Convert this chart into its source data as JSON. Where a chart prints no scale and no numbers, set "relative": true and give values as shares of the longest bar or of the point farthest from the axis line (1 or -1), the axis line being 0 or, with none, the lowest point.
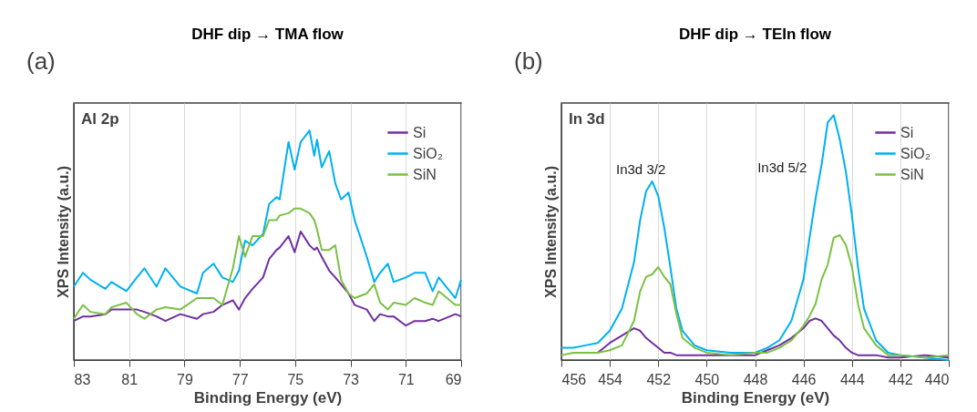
{
  "chart_data": [
    {
      "type": "line",
      "title": "DHF dip → TMA flow",
      "xlabel": "Binding Energy (eV)",
      "ylabel": "XPS Intensity (a.u.)",
      "relative": true,
      "xlim": [
        83,
        69
      ],
      "xticks": [
        83,
        81,
        79,
        77,
        75,
        73,
        71,
        69
      ],
      "grid": "x",
      "legend": "top right",
      "tick_labels": "x",
      "line_style": "solid",
      "annotations": [
        "(a)",
        "Al 2p"
      ],
      "x": [
        83.0,
        82.67,
        82.4,
        81.86,
        81.64,
        81.1,
        80.72,
        80.45,
        80.01,
        79.69,
        79.15,
        78.55,
        78.33,
        77.95,
        77.63,
        77.25,
        77.03,
        76.81,
        76.54,
        76.16,
        75.94,
        75.67,
        75.56,
        75.24,
        75.02,
        74.8,
        74.48,
        74.31,
        74.21,
        74.04,
        73.77,
        73.55,
        73.34,
        73.07,
        72.85,
        72.41,
        72.14,
        71.93,
        71.65,
        71.44,
        71.0,
        70.68,
        70.3,
        70.03,
        69.81,
        69.21,
        69.0
      ],
      "series": [
        {
          "name": "Si",
          "color": "#7030a0",
          "values": [
            0.17,
            0.19,
            0.19,
            0.2,
            0.22,
            0.22,
            0.22,
            0.21,
            0.19,
            0.17,
            0.2,
            0.18,
            0.2,
            0.21,
            0.24,
            0.26,
            0.22,
            0.27,
            0.31,
            0.36,
            0.44,
            0.48,
            0.49,
            0.54,
            0.47,
            0.56,
            0.5,
            0.48,
            0.49,
            0.45,
            0.39,
            0.36,
            0.33,
            0.29,
            0.24,
            0.22,
            0.17,
            0.2,
            0.19,
            0.19,
            0.15,
            0.17,
            0.17,
            0.18,
            0.17,
            0.2,
            0.19
          ]
        },
        {
          "name": "SiO₂",
          "color": "#00b0f0",
          "values": [
            0.32,
            0.38,
            0.35,
            0.31,
            0.34,
            0.3,
            0.36,
            0.4,
            0.32,
            0.4,
            0.32,
            0.29,
            0.38,
            0.42,
            0.36,
            0.34,
            0.39,
            0.52,
            0.5,
            0.55,
            0.68,
            0.71,
            0.7,
            0.95,
            0.83,
            0.95,
            1.0,
            0.89,
            0.96,
            0.84,
            0.91,
            0.77,
            0.7,
            0.73,
            0.61,
            0.45,
            0.34,
            0.38,
            0.42,
            0.34,
            0.36,
            0.38,
            0.38,
            0.3,
            0.36,
            0.27,
            0.35
          ]
        },
        {
          "name": "SiN",
          "color": "#7ac143",
          "values": [
            0.18,
            0.24,
            0.21,
            0.2,
            0.23,
            0.25,
            0.2,
            0.18,
            0.22,
            0.23,
            0.22,
            0.27,
            0.27,
            0.27,
            0.24,
            0.4,
            0.54,
            0.45,
            0.54,
            0.54,
            0.61,
            0.61,
            0.63,
            0.64,
            0.66,
            0.66,
            0.64,
            0.61,
            0.57,
            0.48,
            0.48,
            0.5,
            0.35,
            0.29,
            0.27,
            0.29,
            0.33,
            0.25,
            0.22,
            0.25,
            0.24,
            0.27,
            0.25,
            0.24,
            0.3,
            0.24,
            0.24
          ]
        }
      ]
    },
    {
      "type": "line",
      "title": "DHF dip → TEIn flow",
      "xlabel": "Binding Energy (eV)",
      "ylabel": "XPS Intensity (a.u.)",
      "relative": true,
      "xlim": [
        456,
        440
      ],
      "xticks": [
        456,
        454,
        452,
        450,
        448,
        446,
        444,
        442,
        440
      ],
      "grid": "x",
      "legend": "top right",
      "tick_labels": "x",
      "line_style": "solid",
      "annotations": [
        "(b)",
        "In 3d",
        "In3d 3/2",
        "In3d 5/2"
      ],
      "x": [
        456,
        455.5,
        455,
        454.5,
        454,
        453.5,
        453,
        452.75,
        452.5,
        452.25,
        452,
        451.75,
        451.5,
        451.25,
        451,
        450.5,
        450,
        449,
        448,
        447.5,
        447,
        446.5,
        446,
        445.75,
        445.5,
        445.25,
        445,
        444.75,
        444.5,
        444.25,
        444,
        443.75,
        443.5,
        443,
        442.5,
        442,
        441,
        440
      ],
      "series": [
        {
          "name": "Si",
          "color": "#7030a0",
          "values": [
            null,
            null,
            null,
            0.03,
            0.07,
            0.1,
            0.13,
            0.12,
            0.09,
            0.07,
            0.05,
            0.03,
            0.03,
            0.02,
            0.02,
            0.02,
            0.02,
            0.02,
            0.02,
            0.04,
            0.06,
            0.09,
            0.13,
            0.16,
            0.17,
            0.16,
            0.13,
            0.1,
            0.08,
            0.05,
            0.03,
            0.02,
            0.02,
            0.02,
            0.01,
            0.01,
            0.02,
            0.01
          ]
        },
        {
          "name": "SiO₂",
          "color": "#00b0f0",
          "values": [
            0.05,
            0.05,
            0.06,
            0.07,
            0.12,
            0.21,
            0.4,
            0.57,
            0.69,
            0.73,
            0.67,
            0.54,
            0.38,
            0.21,
            0.12,
            0.06,
            0.04,
            0.03,
            0.03,
            0.05,
            0.08,
            0.16,
            0.33,
            0.5,
            0.66,
            0.8,
            0.97,
            1.0,
            0.9,
            0.77,
            0.59,
            0.38,
            0.21,
            0.08,
            0.03,
            0.02,
            0.01,
            0.0
          ]
        },
        {
          "name": "SiN",
          "color": "#7ac143",
          "values": [
            0.02,
            0.03,
            0.03,
            0.03,
            0.04,
            0.06,
            0.16,
            0.28,
            0.34,
            0.35,
            0.38,
            0.34,
            0.31,
            0.19,
            0.09,
            0.05,
            0.03,
            0.02,
            0.03,
            0.03,
            0.05,
            0.08,
            0.14,
            0.18,
            0.23,
            0.33,
            0.39,
            0.5,
            0.51,
            0.47,
            0.38,
            0.23,
            0.13,
            0.06,
            0.02,
            0.02,
            0.01,
            0.02
          ]
        }
      ]
    }
  ]
}
